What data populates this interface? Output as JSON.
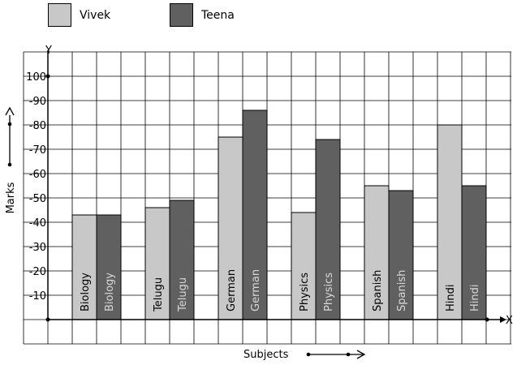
{
  "chart_data": {
    "type": "bar",
    "categories": [
      "Biology",
      "Telugu",
      "German",
      "Physics",
      "Spanish",
      "Hindi"
    ],
    "series": [
      {
        "name": "Vivek",
        "values": [
          43,
          46,
          75,
          44,
          55,
          80
        ],
        "color": "#c8c8c8"
      },
      {
        "name": "Teena",
        "values": [
          43,
          49,
          86,
          74,
          53,
          55
        ],
        "color": "#606060"
      }
    ],
    "title": "",
    "xlabel": "Subjects",
    "ylabel": "Marks",
    "x_axis_letter": "X",
    "y_axis_letter": "Y",
    "ylim": [
      0,
      100
    ],
    "yticks": [
      "-10",
      "-20",
      "-30",
      "-40",
      "-50",
      "-60",
      "-70",
      "-80",
      "-90",
      "100"
    ],
    "grid": true,
    "legend_position": "top-left"
  }
}
